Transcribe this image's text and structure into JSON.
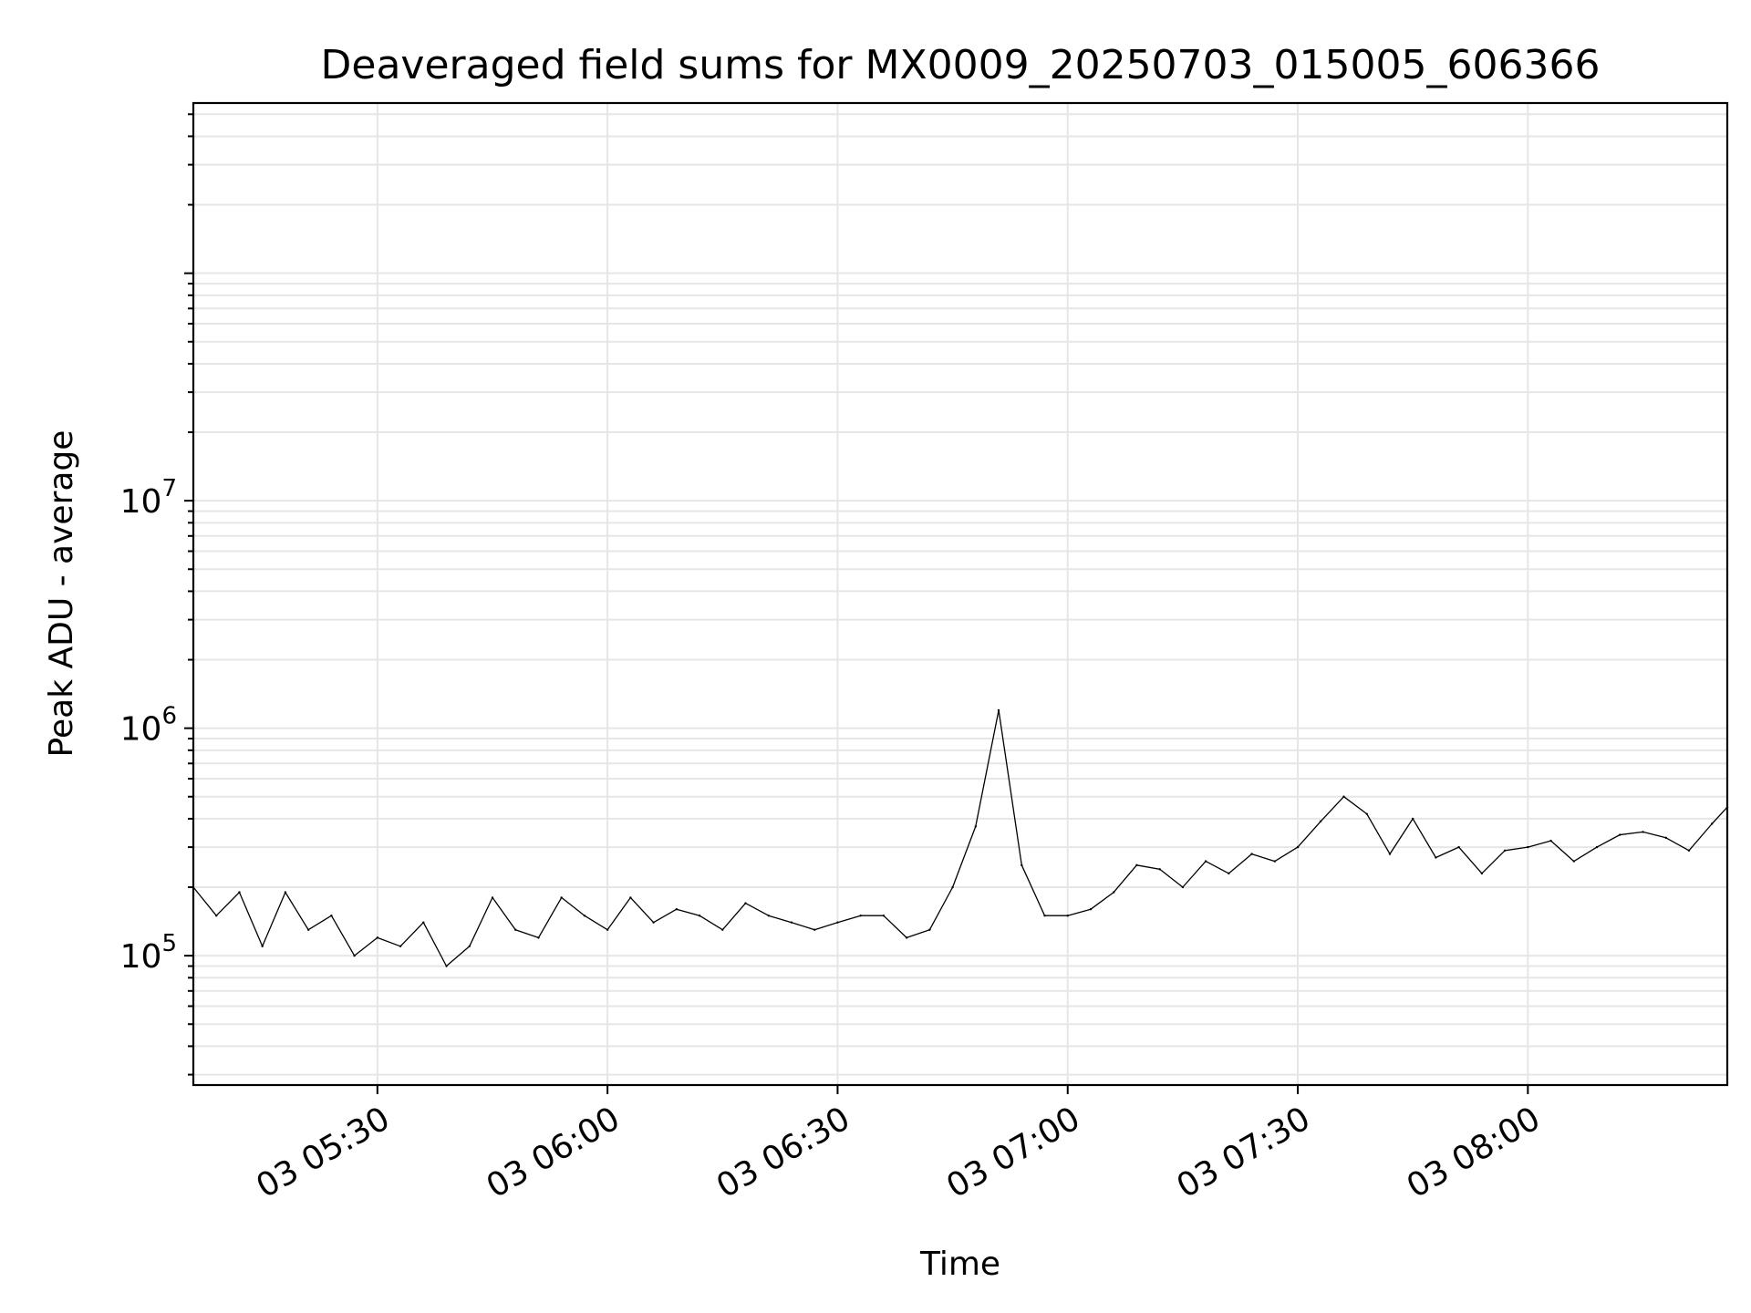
{
  "chart_data": {
    "type": "line",
    "title": "Deaveraged field sums for MX0009_20250703_015005_606366",
    "xlabel": "Time",
    "ylabel": "Peak ADU - average",
    "yscale": "log",
    "xlim": [
      "03 05:06",
      "03 08:26"
    ],
    "ylim": [
      27000,
      560000000
    ],
    "x_ticks": [
      "03 05:30",
      "03 06:00",
      "03 06:30",
      "03 07:00",
      "03 07:30",
      "03 08:00"
    ],
    "y_ticks": [
      {
        "base": "10",
        "exp": "5",
        "value": 100000
      },
      {
        "base": "10",
        "exp": "6",
        "value": 1000000
      },
      {
        "base": "10",
        "exp": "7",
        "value": 10000000
      }
    ],
    "grid": true,
    "legend": "none",
    "series_color": "#000000",
    "series": [
      {
        "x": [
          "03 05:06",
          "03 05:09",
          "03 05:12",
          "03 05:15",
          "03 05:18",
          "03 05:21",
          "03 05:24",
          "03 05:27",
          "03 05:30",
          "03 05:33",
          "03 05:36",
          "03 05:39",
          "03 05:42",
          "03 05:45",
          "03 05:48",
          "03 05:51",
          "03 05:54",
          "03 05:57",
          "03 06:00",
          "03 06:03",
          "03 06:06",
          "03 06:09",
          "03 06:12",
          "03 06:15",
          "03 06:18",
          "03 06:21",
          "03 06:24",
          "03 06:27",
          "03 06:30",
          "03 06:33",
          "03 06:36",
          "03 06:39",
          "03 06:42",
          "03 06:45",
          "03 06:48",
          "03 06:51",
          "03 06:54",
          "03 06:57",
          "03 07:00",
          "03 07:03",
          "03 07:06",
          "03 07:09",
          "03 07:12",
          "03 07:15",
          "03 07:18",
          "03 07:21",
          "03 07:24",
          "03 07:27",
          "03 07:30",
          "03 07:33",
          "03 07:36",
          "03 07:39",
          "03 07:42",
          "03 07:45",
          "03 07:48",
          "03 07:51",
          "03 07:54",
          "03 07:57",
          "03 08:00",
          "03 08:03",
          "03 08:06",
          "03 08:09",
          "03 08:12",
          "03 08:15",
          "03 08:18",
          "03 08:21",
          "03 08:24",
          "03 08:26"
        ],
        "values": [
          200000,
          150000,
          190000,
          110000,
          190000,
          130000,
          150000,
          100000,
          120000,
          110000,
          140000,
          90000,
          110000,
          180000,
          130000,
          120000,
          180000,
          150000,
          130000,
          180000,
          140000,
          160000,
          150000,
          130000,
          170000,
          150000,
          140000,
          130000,
          140000,
          150000,
          150000,
          120000,
          130000,
          200000,
          370000,
          1200000,
          250000,
          150000,
          150000,
          160000,
          190000,
          250000,
          240000,
          200000,
          260000,
          230000,
          280000,
          260000,
          300000,
          390000,
          500000,
          420000,
          280000,
          400000,
          270000,
          300000,
          230000,
          290000,
          300000,
          320000,
          260000,
          300000,
          340000,
          350000,
          330000,
          290000,
          380000,
          450000
        ]
      }
    ]
  }
}
